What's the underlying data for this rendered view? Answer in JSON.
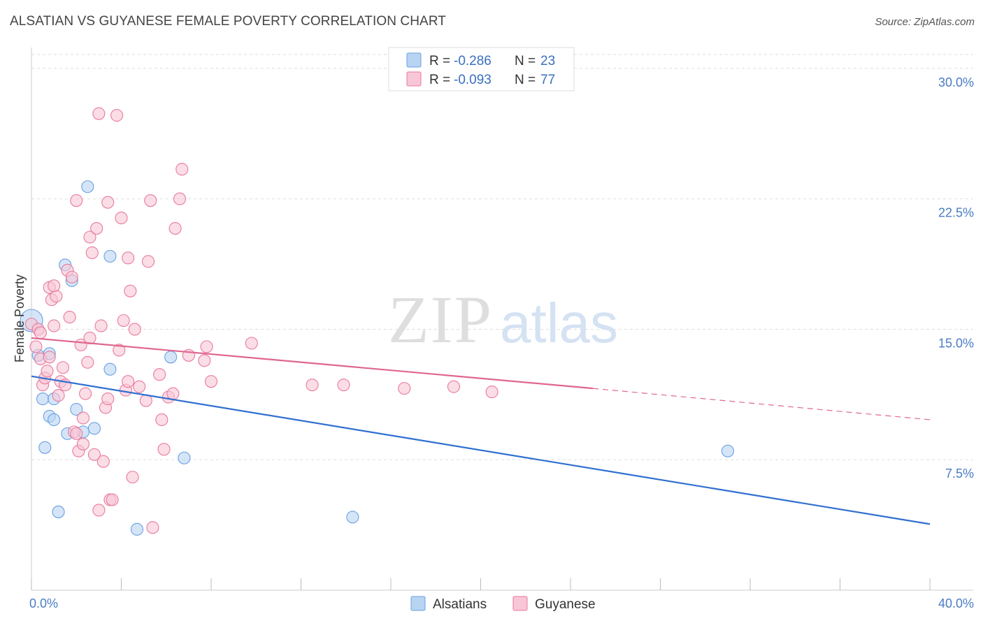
{
  "title": "ALSATIAN VS GUYANESE FEMALE POVERTY CORRELATION CHART",
  "source": "Source: ZipAtlas.com",
  "watermark": {
    "zip": "ZIP",
    "atlas": "atlas"
  },
  "chart_data": {
    "type": "scatter",
    "title": "ALSATIAN VS GUYANESE FEMALE POVERTY CORRELATION CHART",
    "xlabel": "",
    "ylabel": "Female Poverty",
    "xlim": [
      0,
      40
    ],
    "ylim": [
      0,
      30.8
    ],
    "x_tick_labels": [
      {
        "value": 0,
        "label": "0.0%"
      },
      {
        "value": 40,
        "label": "40.0%"
      }
    ],
    "y_tick_labels": [
      {
        "value": 7.5,
        "label": "7.5%"
      },
      {
        "value": 15,
        "label": "15.0%"
      },
      {
        "value": 22.5,
        "label": "22.5%"
      },
      {
        "value": 30,
        "label": "30.0%"
      }
    ],
    "grid": true,
    "legend_position": "top-center",
    "legend": [
      {
        "name": "Alsatians",
        "r_label": "R =",
        "r_value": "-0.286",
        "n_label": "N =",
        "n_value": "23",
        "color": "#6aa0e0",
        "fill": "#b9d3f3"
      },
      {
        "name": "Guyanese",
        "r_label": "R =",
        "r_value": "-0.093",
        "n_label": "N =",
        "n_value": "77",
        "color": "#e87a9e",
        "fill": "#f8c6d6"
      }
    ],
    "series": [
      {
        "name": "Alsatians",
        "color": "#6aa0e0",
        "points": [
          [
            0,
            15.5
          ],
          [
            0.3,
            13.5
          ],
          [
            0.5,
            11
          ],
          [
            0.6,
            8.2
          ],
          [
            0.8,
            10
          ],
          [
            0.8,
            13.6
          ],
          [
            1.0,
            9.8
          ],
          [
            1.0,
            11
          ],
          [
            1.2,
            4.5
          ],
          [
            1.5,
            18.7
          ],
          [
            1.6,
            9.0
          ],
          [
            1.8,
            17.8
          ],
          [
            2.0,
            10.4
          ],
          [
            2.3,
            9.1
          ],
          [
            2.5,
            23.2
          ],
          [
            2.8,
            9.3
          ],
          [
            3.5,
            12.7
          ],
          [
            3.5,
            19.2
          ],
          [
            4.7,
            3.5
          ],
          [
            6.2,
            13.4
          ],
          [
            6.8,
            7.6
          ],
          [
            14.3,
            4.2
          ],
          [
            31,
            8
          ]
        ],
        "trend": {
          "x": [
            0,
            40
          ],
          "y": [
            12.3,
            3.8
          ],
          "style": "solid"
        }
      },
      {
        "name": "Guyanese",
        "color": "#e87a9e",
        "points": [
          [
            0,
            15.3
          ],
          [
            0.2,
            14
          ],
          [
            0.3,
            15
          ],
          [
            0.4,
            13.3
          ],
          [
            0.5,
            11.8
          ],
          [
            0.6,
            12.2
          ],
          [
            0.7,
            12.6
          ],
          [
            0.8,
            13.4
          ],
          [
            0.8,
            17.4
          ],
          [
            0.9,
            16.7
          ],
          [
            1.0,
            15.2
          ],
          [
            1.1,
            16.9
          ],
          [
            1.2,
            11.2
          ],
          [
            1.3,
            12.0
          ],
          [
            1.4,
            12.8
          ],
          [
            1.5,
            11.8
          ],
          [
            1.6,
            18.4
          ],
          [
            1.7,
            15.7
          ],
          [
            1.8,
            18.0
          ],
          [
            1.9,
            9.1
          ],
          [
            2.0,
            9.0
          ],
          [
            2.0,
            22.4
          ],
          [
            2.1,
            8.0
          ],
          [
            2.2,
            14.1
          ],
          [
            2.3,
            9.9
          ],
          [
            2.3,
            8.4
          ],
          [
            2.4,
            11.3
          ],
          [
            2.5,
            13.1
          ],
          [
            2.6,
            14.5
          ],
          [
            2.6,
            20.3
          ],
          [
            2.7,
            19.4
          ],
          [
            2.8,
            7.8
          ],
          [
            2.9,
            20.8
          ],
          [
            3.0,
            27.4
          ],
          [
            3.0,
            4.6
          ],
          [
            3.1,
            15.2
          ],
          [
            3.2,
            7.4
          ],
          [
            3.3,
            10.5
          ],
          [
            3.4,
            11.0
          ],
          [
            3.4,
            22.3
          ],
          [
            3.5,
            5.2
          ],
          [
            3.6,
            5.2
          ],
          [
            3.8,
            27.3
          ],
          [
            3.9,
            13.8
          ],
          [
            4.0,
            21.4
          ],
          [
            4.1,
            15.5
          ],
          [
            4.2,
            11.5
          ],
          [
            4.3,
            19.1
          ],
          [
            4.3,
            12.0
          ],
          [
            4.4,
            17.2
          ],
          [
            4.5,
            6.5
          ],
          [
            4.6,
            15.0
          ],
          [
            4.8,
            11.7
          ],
          [
            5.1,
            10.9
          ],
          [
            5.2,
            18.9
          ],
          [
            5.3,
            22.4
          ],
          [
            5.4,
            3.6
          ],
          [
            5.7,
            12.4
          ],
          [
            5.8,
            9.8
          ],
          [
            5.9,
            8.1
          ],
          [
            6.1,
            11.1
          ],
          [
            6.3,
            11.3
          ],
          [
            6.4,
            20.8
          ],
          [
            6.6,
            22.5
          ],
          [
            6.7,
            24.2
          ],
          [
            7.0,
            13.5
          ],
          [
            7.7,
            13.2
          ],
          [
            7.8,
            14.0
          ],
          [
            8.0,
            12.0
          ],
          [
            9.8,
            14.2
          ],
          [
            12.5,
            11.8
          ],
          [
            13.9,
            11.8
          ],
          [
            16.6,
            11.6
          ],
          [
            18.8,
            11.7
          ],
          [
            20.5,
            11.4
          ],
          [
            0.4,
            14.8
          ],
          [
            1.0,
            17.5
          ]
        ],
        "trend": {
          "x": [
            0,
            25
          ],
          "y": [
            14.5,
            11.6
          ],
          "style": "solid"
        },
        "trend_extension": {
          "x": [
            25,
            40
          ],
          "y": [
            11.6,
            9.8
          ],
          "style": "dashed"
        }
      }
    ]
  }
}
